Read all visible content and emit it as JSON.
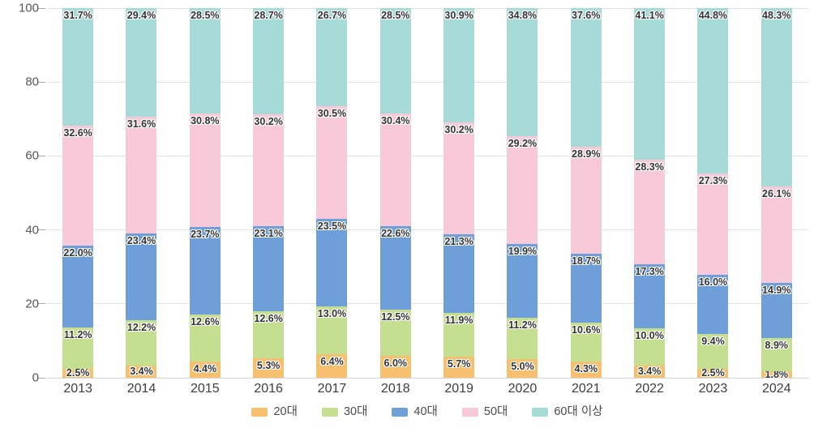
{
  "chart_data": {
    "type": "bar",
    "stacked": true,
    "title": "",
    "xlabel": "",
    "ylabel": "",
    "ylim": [
      0,
      100
    ],
    "y_ticks": [
      0,
      20,
      40,
      60,
      80,
      100
    ],
    "grid": true,
    "legend_position": "bottom",
    "label_format": "{value}%",
    "categories": [
      "2013",
      "2014",
      "2015",
      "2016",
      "2017",
      "2018",
      "2019",
      "2020",
      "2021",
      "2022",
      "2023",
      "2024"
    ],
    "series": [
      {
        "name": "20대",
        "color": "#F7C06F",
        "values": [
          2.5,
          3.4,
          4.4,
          5.3,
          6.4,
          6.0,
          5.7,
          5.0,
          4.3,
          3.4,
          2.5,
          1.8
        ]
      },
      {
        "name": "30대",
        "color": "#C5DF90",
        "values": [
          11.2,
          12.2,
          12.6,
          12.6,
          13.0,
          12.5,
          11.9,
          11.2,
          10.6,
          10.0,
          9.4,
          8.9
        ]
      },
      {
        "name": "40대",
        "color": "#6F9FD8",
        "values": [
          22.0,
          23.4,
          23.7,
          23.1,
          23.5,
          22.6,
          21.3,
          19.9,
          18.7,
          17.3,
          16.0,
          14.9
        ]
      },
      {
        "name": "50대",
        "color": "#F8C9D8",
        "values": [
          32.6,
          31.6,
          30.8,
          30.2,
          30.5,
          30.4,
          30.2,
          29.2,
          28.9,
          28.3,
          27.3,
          26.1
        ]
      },
      {
        "name": "60대 이상",
        "color": "#A6DBD7",
        "values": [
          31.7,
          29.4,
          28.5,
          28.7,
          26.7,
          28.5,
          30.9,
          34.8,
          37.6,
          41.1,
          44.8,
          48.3
        ]
      }
    ],
    "colors": {
      "grid": "#e2e2e2",
      "zero_line": "#d6d6d6",
      "axis_text": "#555555",
      "category_text": "#3d3d3d",
      "data_label_text": "#333333",
      "legend_text": "#4a4a4a"
    }
  }
}
